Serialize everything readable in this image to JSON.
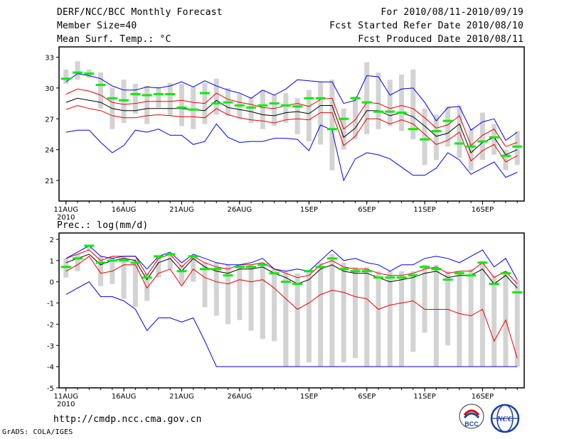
{
  "header": {
    "title": "DERF/NCC/BCC Monthly Forecast",
    "member": "Member Size=40",
    "variable": "Mean Surf. Temp.: °C",
    "period": "For 2010/08/11-2010/09/19",
    "refer": "Fcst Started Refer Date 2010/08/10",
    "produced": "Fcst Produced Date 2010/08/11"
  },
  "footer": {
    "url": "http://cmdp.ncc.cma.gov.cn",
    "credit": "GrADS: COLA/IGES",
    "logo1_text": "BCC",
    "logo2_text": "NCC"
  },
  "colors": {
    "box": "#d3d3d3",
    "median": "#00ee00",
    "mean": "#000000",
    "sd": "#ee0000",
    "range": "#0000ee"
  },
  "chart_data": [
    {
      "type": "line",
      "title": "Mean Surf. Temp.: °C",
      "ylim": [
        19,
        34
      ],
      "yticks": [
        21,
        24,
        27,
        30,
        33
      ],
      "xlim": [
        -0.6,
        39.6
      ],
      "xticks": [
        {
          "pos": 0,
          "label": "11AUG"
        },
        {
          "pos": 5,
          "label": "16AUG"
        },
        {
          "pos": 10,
          "label": "21AUG"
        },
        {
          "pos": 15,
          "label": "26AUG"
        },
        {
          "pos": 21,
          "label": "1SEP"
        },
        {
          "pos": 26,
          "label": "6SEP"
        },
        {
          "pos": 31,
          "label": "11SEP"
        },
        {
          "pos": 36,
          "label": "16SEP"
        }
      ],
      "year_label": "2010",
      "series": [
        {
          "name": "mean",
          "values": [
            28.6,
            29.0,
            28.8,
            28.6,
            28.0,
            27.8,
            27.8,
            28.0,
            28.0,
            28.0,
            28.0,
            27.9,
            27.8,
            28.8,
            28.1,
            27.9,
            27.7,
            27.4,
            27.3,
            27.6,
            27.7,
            27.5,
            28.3,
            28.3,
            25.2,
            26.1,
            27.8,
            27.8,
            27.3,
            27.6,
            27.2,
            26.3,
            25.3,
            25.6,
            26.5,
            23.7,
            24.7,
            25.2,
            23.5,
            24.0
          ]
        },
        {
          "name": "mean_plus_sd",
          "values": [
            29.4,
            29.9,
            29.7,
            29.3,
            28.6,
            28.4,
            28.5,
            28.7,
            28.7,
            28.7,
            28.8,
            28.6,
            28.5,
            29.5,
            28.9,
            28.6,
            28.4,
            28.1,
            28.0,
            28.3,
            28.5,
            28.2,
            28.9,
            29.0,
            26.0,
            26.9,
            28.6,
            28.5,
            28.0,
            28.3,
            28.0,
            27.1,
            26.1,
            26.4,
            27.3,
            24.4,
            25.4,
            26.0,
            24.3,
            24.7
          ]
        },
        {
          "name": "mean_minus_sd",
          "values": [
            27.9,
            28.3,
            28.0,
            27.8,
            27.3,
            27.1,
            27.1,
            27.3,
            27.4,
            27.3,
            27.2,
            27.2,
            27.1,
            28.0,
            27.4,
            27.1,
            26.9,
            26.8,
            26.6,
            26.9,
            27.0,
            26.9,
            27.6,
            27.6,
            24.4,
            25.3,
            27.0,
            27.0,
            26.5,
            26.9,
            26.5,
            25.5,
            24.5,
            24.9,
            25.7,
            22.9,
            23.9,
            24.5,
            22.8,
            23.4
          ]
        },
        {
          "name": "max",
          "values": [
            30.6,
            31.4,
            31.2,
            30.9,
            30.2,
            29.8,
            29.8,
            30.1,
            30.0,
            30.2,
            30.6,
            30.1,
            30.7,
            30.2,
            29.8,
            29.5,
            29.0,
            29.8,
            29.3,
            29.9,
            30.8,
            30.7,
            30.6,
            30.6,
            28.5,
            28.8,
            31.2,
            31.1,
            29.3,
            29.9,
            30.0,
            28.6,
            26.8,
            28.1,
            28.2,
            25.9,
            26.7,
            27.0,
            24.9,
            25.7
          ]
        },
        {
          "name": "min",
          "values": [
            25.7,
            25.9,
            25.9,
            24.7,
            23.7,
            24.4,
            25.9,
            25.7,
            26.0,
            25.4,
            25.4,
            24.5,
            24.8,
            26.5,
            25.2,
            24.7,
            24.8,
            24.8,
            25.1,
            25.1,
            25.0,
            23.9,
            26.4,
            25.9,
            21.0,
            23.1,
            23.7,
            23.5,
            23.1,
            22.3,
            21.5,
            21.5,
            22.2,
            23.7,
            23.0,
            21.6,
            22.2,
            22.8,
            21.3,
            21.8
          ]
        },
        {
          "name": "median",
          "values": [
            30.9,
            31.5,
            31.4,
            30.3,
            29.0,
            28.8,
            29.4,
            29.3,
            29.4,
            29.4,
            28.1,
            27.9,
            29.5,
            28.5,
            28.6,
            28.3,
            28.1,
            28.3,
            28.5,
            28.3,
            28.2,
            29.0,
            29.0,
            26.0,
            27.0,
            29.0,
            28.6,
            27.7,
            27.7,
            27.6,
            26.0,
            25.0,
            25.8,
            26.8,
            24.6,
            24.3,
            24.8,
            25.2,
            23.4,
            24.3
          ]
        }
      ],
      "boxes": {
        "low": [
          30.4,
          30.8,
          31.0,
          28.0,
          26.0,
          26.6,
          27.5,
          26.5,
          28.1,
          27.3,
          26.3,
          26.0,
          26.5,
          27.4,
          27.3,
          27.0,
          26.6,
          26.0,
          26.3,
          26.6,
          25.5,
          24.8,
          24.5,
          22.0,
          24.0,
          25.0,
          25.5,
          26.0,
          26.3,
          25.8,
          25.0,
          22.5,
          23.0,
          24.3,
          23.2,
          22.0,
          23.0,
          23.5,
          22.0,
          22.5
        ],
        "high": [
          31.8,
          32.6,
          31.8,
          31.5,
          30.0,
          30.8,
          30.4,
          30.2,
          30.1,
          30.5,
          30.4,
          30.1,
          30.5,
          30.9,
          30.0,
          29.4,
          29.1,
          29.8,
          29.3,
          29.5,
          29.0,
          29.8,
          30.6,
          30.8,
          28.0,
          29.2,
          32.5,
          31.5,
          30.8,
          31.3,
          31.8,
          28.0,
          27.4,
          28.2,
          28.3,
          26.0,
          27.6,
          26.5,
          24.0,
          25.8
        ]
      }
    },
    {
      "type": "line",
      "title": "Prec.: log(mm/d)",
      "ylim": [
        -5,
        2.3
      ],
      "yticks": [
        -5,
        -4,
        -3,
        -2,
        -1,
        0,
        1,
        2
      ],
      "xlim": [
        -0.6,
        39.6
      ],
      "xticks": [
        {
          "pos": 0,
          "label": "11AUG"
        },
        {
          "pos": 5,
          "label": "16AUG"
        },
        {
          "pos": 10,
          "label": "21AUG"
        },
        {
          "pos": 15,
          "label": "26AUG"
        },
        {
          "pos": 21,
          "label": "1SEP"
        },
        {
          "pos": 26,
          "label": "6SEP"
        },
        {
          "pos": 31,
          "label": "11SEP"
        },
        {
          "pos": 36,
          "label": "16SEP"
        }
      ],
      "year_label": "2010",
      "series": [
        {
          "name": "mean",
          "values": [
            0.9,
            1.1,
            1.3,
            0.8,
            1.0,
            1.1,
            1.0,
            0.1,
            0.9,
            1.1,
            0.5,
            1.1,
            0.7,
            0.5,
            0.4,
            0.6,
            0.6,
            0.7,
            0.4,
            0.2,
            -0.1,
            0.1,
            0.6,
            0.8,
            0.5,
            0.4,
            0.4,
            0.2,
            0.0,
            0.1,
            0.2,
            0.4,
            0.5,
            0.2,
            0.3,
            0.3,
            0.6,
            -0.1,
            0.3,
            -0.3
          ]
        },
        {
          "name": "mean_plus_sd",
          "values": [
            1.1,
            1.3,
            1.5,
            1.0,
            1.2,
            1.2,
            1.2,
            0.3,
            1.1,
            1.3,
            0.7,
            1.2,
            0.9,
            0.7,
            0.6,
            0.8,
            0.8,
            0.9,
            0.6,
            0.4,
            0.2,
            0.3,
            0.8,
            1.0,
            0.7,
            0.6,
            0.6,
            0.4,
            0.3,
            0.3,
            0.4,
            0.6,
            0.7,
            0.4,
            0.5,
            0.5,
            0.9,
            0.2,
            0.5,
            -0.1
          ]
        },
        {
          "name": "mean_minus_sd",
          "values": [
            0.5,
            0.8,
            1.2,
            0.4,
            0.5,
            0.8,
            0.8,
            -0.3,
            0.4,
            0.6,
            -0.2,
            0.6,
            0.2,
            0.0,
            -0.1,
            0.1,
            0.0,
            0.1,
            -0.3,
            -0.8,
            -1.3,
            -1.0,
            -0.6,
            -0.4,
            -0.5,
            -0.7,
            -0.8,
            -1.3,
            -1.1,
            -1.0,
            -0.9,
            -1.3,
            -1.3,
            -1.3,
            -1.5,
            -1.6,
            -1.3,
            -2.8,
            -1.8,
            -3.6
          ]
        },
        {
          "name": "max",
          "values": [
            1.1,
            1.4,
            1.7,
            1.2,
            1.1,
            1.2,
            1.2,
            0.6,
            1.2,
            1.4,
            0.9,
            1.3,
            1.1,
            0.9,
            0.8,
            0.8,
            0.9,
            1.1,
            0.6,
            0.5,
            0.6,
            0.5,
            1.0,
            1.5,
            1.0,
            1.1,
            0.9,
            0.8,
            0.5,
            0.8,
            0.8,
            1.1,
            1.2,
            1.1,
            0.9,
            1.2,
            1.5,
            0.7,
            1.1,
            0.1
          ]
        },
        {
          "name": "min",
          "values": [
            -0.6,
            -0.3,
            0.0,
            -0.7,
            -0.7,
            -0.9,
            -1.3,
            -2.3,
            -1.7,
            -1.7,
            -1.9,
            -1.7,
            -2.8,
            -4.0,
            -4.0,
            -4.0,
            -4.0,
            -4.0,
            -4.0,
            -4.0,
            -4.0,
            -4.0,
            -4.0,
            -4.0,
            -4.0,
            -4.0,
            -4.0,
            -4.0,
            -4.0,
            -4.0,
            -4.0,
            -4.0,
            -4.0,
            -4.0,
            -4.0,
            -4.0,
            -4.0,
            -4.0,
            -4.0,
            -4.0
          ]
        },
        {
          "name": "median",
          "values": [
            0.7,
            1.1,
            1.7,
            0.9,
            1.0,
            1.0,
            0.9,
            0.2,
            1.2,
            1.3,
            0.5,
            1.2,
            0.6,
            0.6,
            0.3,
            0.7,
            0.7,
            0.8,
            0.4,
            0.0,
            -0.1,
            0.5,
            0.7,
            1.1,
            0.6,
            0.5,
            0.5,
            0.2,
            0.2,
            0.2,
            0.3,
            0.7,
            0.6,
            0.1,
            0.4,
            0.3,
            0.9,
            -0.1,
            0.4,
            -0.5
          ]
        }
      ],
      "boxes": {
        "low": [
          0.2,
          0.5,
          1.5,
          -0.2,
          -0.1,
          -0.8,
          -1.2,
          -0.9,
          0.2,
          0.6,
          -0.1,
          0.0,
          -1.2,
          -1.6,
          -2.0,
          -1.8,
          -2.3,
          -2.7,
          -2.8,
          -4.0,
          -4.0,
          -3.8,
          -4.0,
          -4.0,
          -3.8,
          -3.6,
          -4.0,
          -4.0,
          -4.0,
          -4.0,
          -3.3,
          -2.4,
          -4.0,
          -3.0,
          -4.0,
          -4.0,
          -4.0,
          -4.0,
          -4.0,
          -4.0
        ],
        "high": [
          1.1,
          1.3,
          1.7,
          1.2,
          1.2,
          1.2,
          1.1,
          0.4,
          1.2,
          1.3,
          0.8,
          1.2,
          0.9,
          0.9,
          0.8,
          0.8,
          0.8,
          0.9,
          0.6,
          0.5,
          0.4,
          0.5,
          0.9,
          1.3,
          0.9,
          0.7,
          0.7,
          0.5,
          0.5,
          0.5,
          0.5,
          0.8,
          0.8,
          0.5,
          0.5,
          0.6,
          1.0,
          0.3,
          0.5,
          0.1
        ]
      }
    }
  ]
}
